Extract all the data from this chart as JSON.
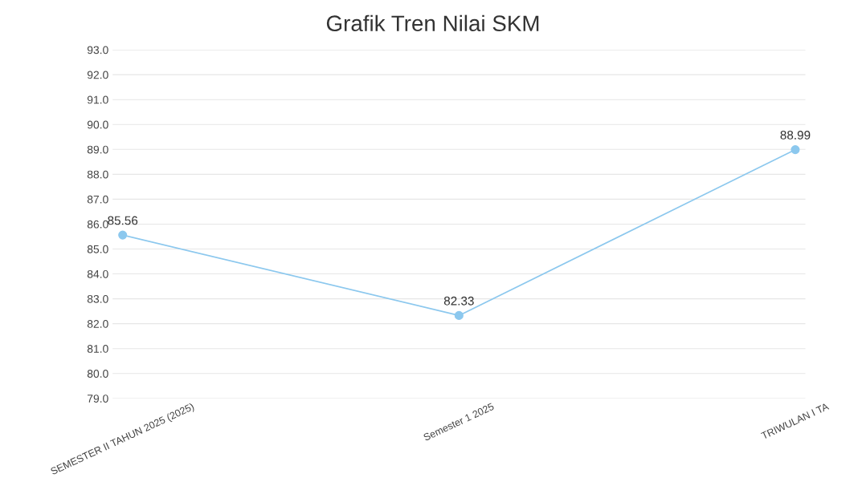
{
  "chart_data": {
    "type": "line",
    "title": "Grafik Tren Nilai SKM",
    "categories": [
      "SEMESTER II TAHUN 2025 (2025)",
      "Semester 1 2025",
      "TRIWULAN I TA"
    ],
    "series": [
      {
        "color": "#8cc8ee",
        "values": [
          85.56,
          82.33,
          88.99
        ]
      }
    ],
    "value_labels": [
      "85.56",
      "82.33",
      "88.99"
    ],
    "ylim": [
      79,
      93
    ],
    "yticks": [
      {
        "value": 79,
        "label": "79.0"
      },
      {
        "value": 80,
        "label": "80.0"
      },
      {
        "value": 81,
        "label": "81.0"
      },
      {
        "value": 82,
        "label": "82.0"
      },
      {
        "value": 83,
        "label": "83.0"
      },
      {
        "value": 84,
        "label": "84.0"
      },
      {
        "value": 85,
        "label": "85.0"
      },
      {
        "value": 86,
        "label": "86.0"
      },
      {
        "value": 87,
        "label": "87.0"
      },
      {
        "value": 88,
        "label": "88.0"
      },
      {
        "value": 89,
        "label": "89.0"
      },
      {
        "value": 90,
        "label": "90.0"
      },
      {
        "value": 91,
        "label": "91.0"
      },
      {
        "value": 92,
        "label": "92.0"
      },
      {
        "value": 93,
        "label": "93.0"
      }
    ],
    "grid": "y",
    "marker": "circle",
    "line_style": "solid",
    "legend": false
  }
}
